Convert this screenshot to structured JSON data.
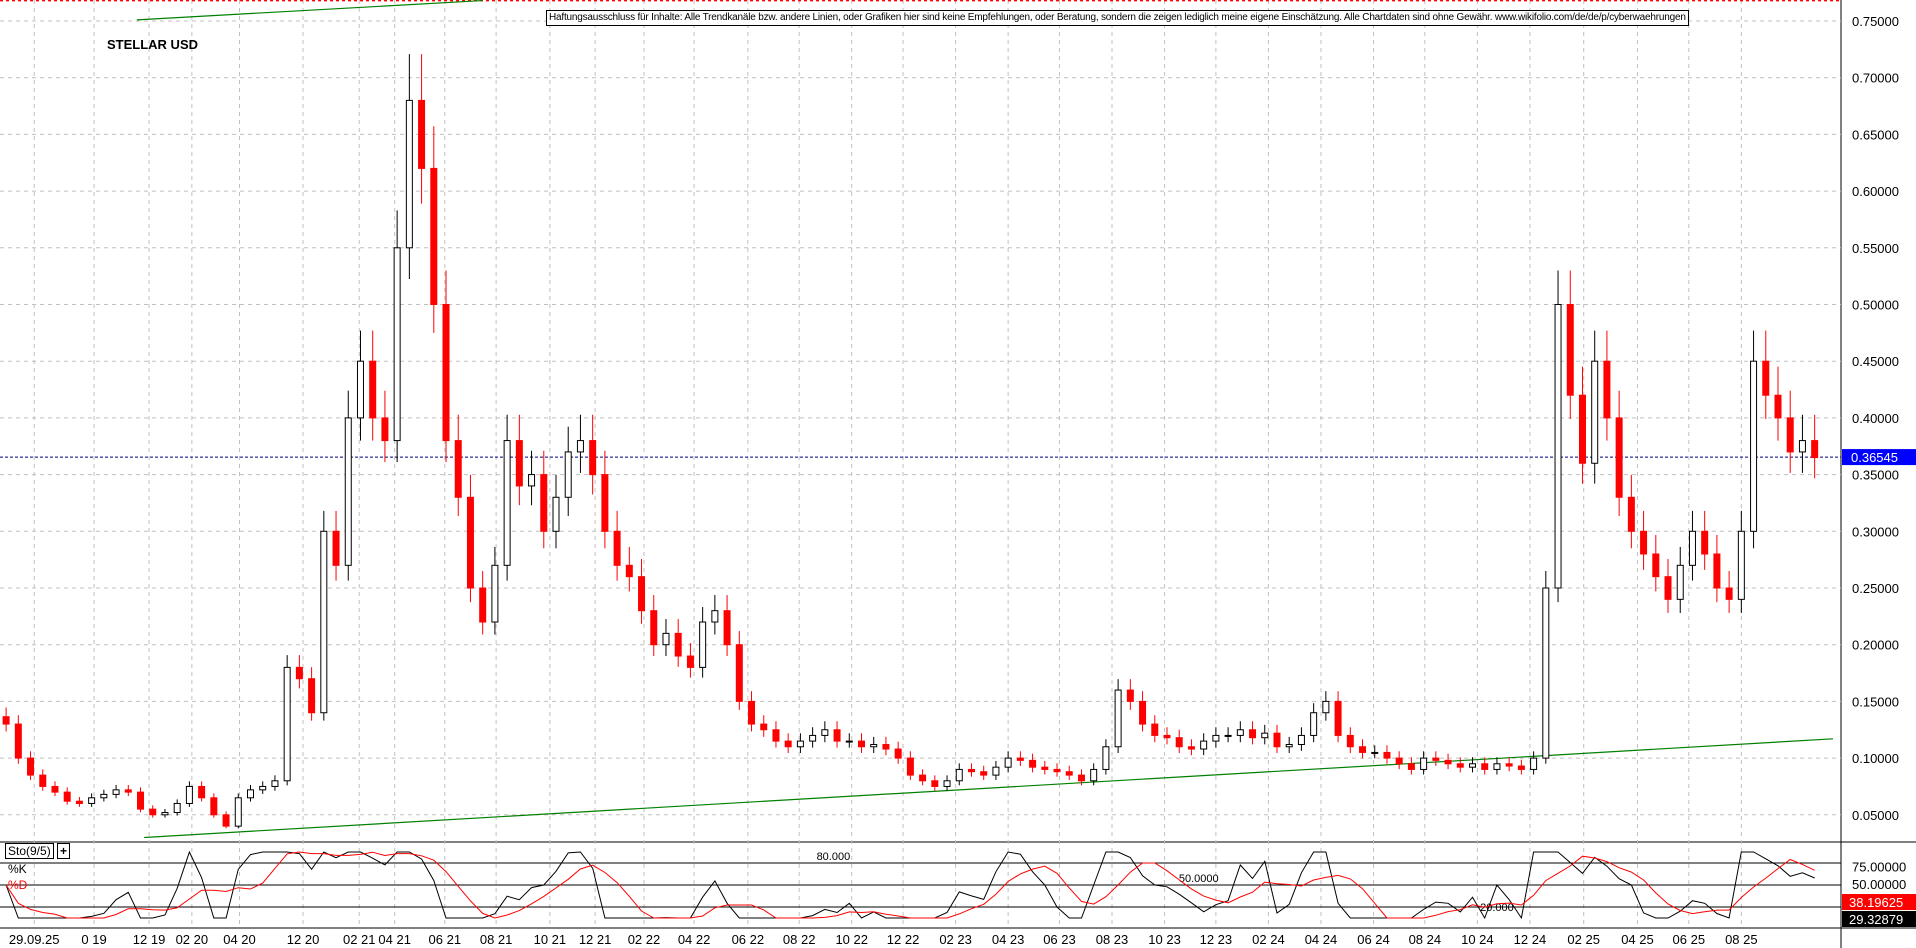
{
  "title": "STELLAR USD",
  "disclaimer": "Haftungsausschluss für Inhalte: Alle Trendkanäle bzw. andere Linien, oder Grafiken hier sind keine Empfehlungen, oder Beratung, sondern die zeigen lediglich meine eigene Einschätzung. Alle Chartdaten sind ohne Gewähr.  www.wikifolio.com/de/de/p/cyberwaehrungen",
  "colors": {
    "up": "#000000",
    "down": "#ff0000",
    "trendline": "#008000",
    "current_price": "#0000ff",
    "grid": "#c0c0c0"
  },
  "chart_data": [
    {
      "type": "candlestick",
      "title": "STELLAR USD",
      "ylim": [
        0.03,
        0.77
      ],
      "y_ticks": [
        "0.05000",
        "0.10000",
        "0.15000",
        "0.20000",
        "0.25000",
        "0.30000",
        "0.35000",
        "0.40000",
        "0.45000",
        "0.50000",
        "0.55000",
        "0.60000",
        "0.65000",
        "0.70000",
        "0.75000"
      ],
      "grid": true,
      "closes": [
        0.13,
        0.1,
        0.085,
        0.075,
        0.07,
        0.062,
        0.06,
        0.065,
        0.068,
        0.072,
        0.07,
        0.055,
        0.05,
        0.052,
        0.06,
        0.075,
        0.065,
        0.05,
        0.04,
        0.065,
        0.072,
        0.075,
        0.08,
        0.18,
        0.17,
        0.14,
        0.3,
        0.27,
        0.4,
        0.45,
        0.4,
        0.38,
        0.55,
        0.68,
        0.62,
        0.5,
        0.38,
        0.33,
        0.25,
        0.22,
        0.27,
        0.38,
        0.34,
        0.35,
        0.3,
        0.33,
        0.37,
        0.38,
        0.35,
        0.3,
        0.27,
        0.26,
        0.23,
        0.2,
        0.21,
        0.19,
        0.18,
        0.22,
        0.23,
        0.2,
        0.15,
        0.13,
        0.125,
        0.115,
        0.11,
        0.115,
        0.12,
        0.125,
        0.115,
        0.115,
        0.11,
        0.112,
        0.108,
        0.1,
        0.085,
        0.08,
        0.075,
        0.08,
        0.09,
        0.088,
        0.085,
        0.092,
        0.1,
        0.098,
        0.092,
        0.09,
        0.088,
        0.085,
        0.08,
        0.09,
        0.11,
        0.16,
        0.15,
        0.13,
        0.12,
        0.118,
        0.11,
        0.108,
        0.115,
        0.12,
        0.12,
        0.125,
        0.118,
        0.122,
        0.11,
        0.112,
        0.12,
        0.14,
        0.15,
        0.12,
        0.11,
        0.105,
        0.105,
        0.1,
        0.095,
        0.09,
        0.1,
        0.098,
        0.095,
        0.092,
        0.095,
        0.09,
        0.095,
        0.093,
        0.09,
        0.1,
        0.25,
        0.5,
        0.42,
        0.36,
        0.45,
        0.4,
        0.33,
        0.3,
        0.28,
        0.26,
        0.24,
        0.27,
        0.3,
        0.28,
        0.25,
        0.24,
        0.3,
        0.45,
        0.42,
        0.4,
        0.37,
        0.38,
        0.365
      ],
      "x_ticks": [
        {
          "label": "29.09.25",
          "bar": 2.3
        },
        {
          "label": "0 19",
          "bar": 7.2
        },
        {
          "label": "12 19",
          "bar": 11.7
        },
        {
          "label": "02 20",
          "bar": 15.2
        },
        {
          "label": "04 20",
          "bar": 19.1
        },
        {
          "label": "12 20",
          "bar": 24.3
        },
        {
          "label": "02 21",
          "bar": 28.9
        },
        {
          "label": "04 21",
          "bar": 31.8
        },
        {
          "label": "06 21",
          "bar": 35.9
        },
        {
          "label": "08 21",
          "bar": 40.1
        },
        {
          "label": "10 21",
          "bar": 44.5
        },
        {
          "label": "12 21",
          "bar": 48.2
        },
        {
          "label": "02 22",
          "bar": 52.2
        },
        {
          "label": "04 22",
          "bar": 56.3
        },
        {
          "label": "06 22",
          "bar": 60.7
        },
        {
          "label": "08 22",
          "bar": 64.9
        },
        {
          "label": "10 22",
          "bar": 69.2
        },
        {
          "label": "12 22",
          "bar": 73.4
        },
        {
          "label": "02 23",
          "bar": 77.7
        },
        {
          "label": "04 23",
          "bar": 82
        },
        {
          "label": "06 23",
          "bar": 86.2
        },
        {
          "label": "08 23",
          "bar": 90.5
        },
        {
          "label": "10 23",
          "bar": 94.8
        },
        {
          "label": "12 23",
          "bar": 99
        },
        {
          "label": "02 24",
          "bar": 103.3
        },
        {
          "label": "04 24",
          "bar": 107.6
        },
        {
          "label": "06 24",
          "bar": 111.9
        },
        {
          "label": "08 24",
          "bar": 116.1
        },
        {
          "label": "10 24",
          "bar": 120.4
        },
        {
          "label": "12 24",
          "bar": 124.7
        },
        {
          "label": "02 25",
          "bar": 129.1
        },
        {
          "label": "04 25",
          "bar": 133.5
        },
        {
          "label": "06 25",
          "bar": 137.7
        },
        {
          "label": "08 25",
          "bar": 142
        }
      ],
      "trendlines": [
        {
          "from": {
            "bar": 11.3,
            "price": 0.03
          },
          "to": {
            "bar": 149.5,
            "price": 0.117
          }
        },
        {
          "from": {
            "bar": 10.7,
            "price": 0.751
          },
          "to": {
            "bar": 39,
            "price": 0.768
          }
        }
      ],
      "resistance_line_price": 0.768,
      "current_price": 0.36545,
      "current_price_label": "0.36545"
    },
    {
      "type": "line",
      "name": "Sto(9/5)",
      "plus_label": "+",
      "series": [
        {
          "name": "%K"
        },
        {
          "name": "%D"
        }
      ],
      "levels": [
        {
          "value": 80,
          "label": "80.000"
        },
        {
          "value": 50,
          "label": "50.0000"
        },
        {
          "value": 20,
          "label": "20.000"
        }
      ],
      "y_ticks": [
        "75.00000",
        "50.00000"
      ],
      "last_d": "38.19625",
      "last_k": "29.32879"
    }
  ]
}
